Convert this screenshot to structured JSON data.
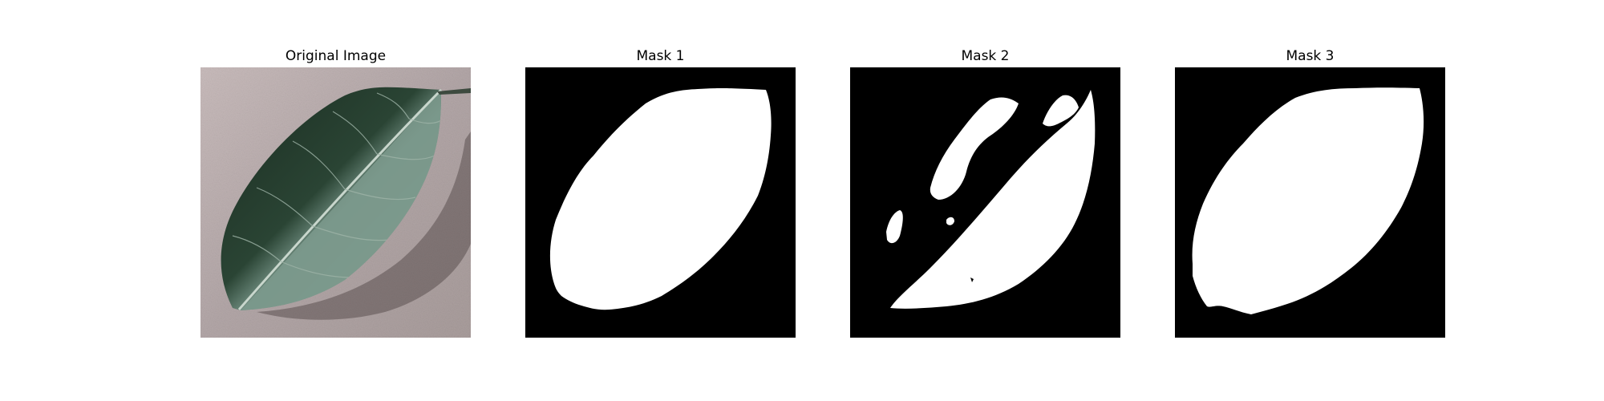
{
  "figure": {
    "panels": [
      {
        "title": "Original Image",
        "kind": "photo",
        "content": "leaf"
      },
      {
        "title": "Mask 1",
        "kind": "mask",
        "content": "leaf-mask"
      },
      {
        "title": "Mask 2",
        "kind": "mask",
        "content": "leaf-mask-partial"
      },
      {
        "title": "Mask 3",
        "kind": "mask",
        "content": "leaf-mask"
      }
    ],
    "colors": {
      "page_background": "#ffffff",
      "photo_background": "#b3a7a7",
      "leaf_dark": "#1f3325",
      "leaf_light": "#7f9d90",
      "mask_foreground": "#ffffff",
      "mask_background": "#000000"
    }
  }
}
